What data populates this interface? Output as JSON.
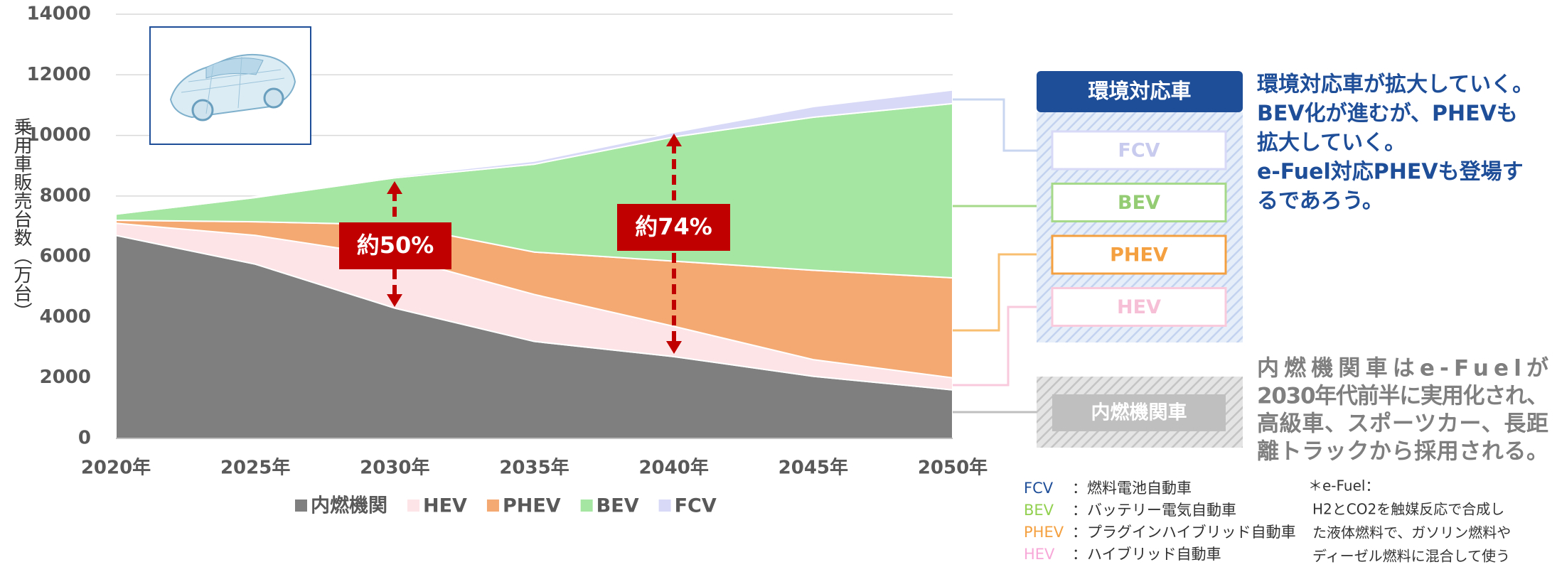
{
  "chart_data": {
    "type": "stacked_area",
    "ylabel": "乗用車販売台数（万台）",
    "categories": [
      "2020年",
      "2025年",
      "2030年",
      "2035年",
      "2040年",
      "2045年",
      "2050年"
    ],
    "series": [
      {
        "name": "内燃機関",
        "color": "#7f7f7f",
        "values": [
          6700,
          5750,
          4300,
          3200,
          2700,
          2050,
          1600
        ]
      },
      {
        "name": "HEV",
        "color": "#fde4e6",
        "values": [
          400,
          950,
          1700,
          1550,
          1000,
          550,
          400
        ]
      },
      {
        "name": "PHEV",
        "color": "#f4a872",
        "values": [
          100,
          450,
          1050,
          1400,
          2150,
          2950,
          3300
        ]
      },
      {
        "name": "BEV",
        "color": "#a6e6a3",
        "values": [
          200,
          800,
          1550,
          2900,
          4100,
          5050,
          5750
        ]
      },
      {
        "name": "FCV",
        "color": "#d7d9f7",
        "values": [
          0,
          30,
          50,
          100,
          150,
          350,
          450
        ]
      }
    ],
    "ylim": [
      0,
      14000
    ],
    "yticks": [
      0,
      2000,
      4000,
      6000,
      8000,
      10000,
      12000,
      14000
    ],
    "grid": true,
    "annotations": [
      "約50%",
      "約74%"
    ]
  },
  "panel": {
    "header": "環境対応車",
    "boxes": [
      "FCV",
      "BEV",
      "PHEV",
      "HEV"
    ],
    "ice_box": "内燃機関車",
    "blue_text": [
      "環境対応車が拡大していく。",
      "BEV化が進むが、PHEVも",
      "拡大していく。",
      "e-Fuel対応PHEVも登場す",
      "るであろう。"
    ],
    "gray_text": [
      "内燃機関車はe-Fuelが",
      "2030年代前半に実用化され、",
      "高級車、スポーツカー、長距",
      "離トラックから採用される。"
    ],
    "glossary": [
      [
        "FCV",
        "：燃料電池自動車"
      ],
      [
        "BEV",
        "：バッテリー電気自動車"
      ],
      [
        "PHEV",
        "：プラグインハイブリッド自動車"
      ],
      [
        "HEV",
        "：ハイブリッド自動車"
      ]
    ],
    "note": [
      "＊e-Fuel：",
      "H2とCO2を触媒反応で合成し",
      "た液体燃料で、ガソリン燃料や",
      "ディーゼル燃料に混合して使う"
    ]
  }
}
